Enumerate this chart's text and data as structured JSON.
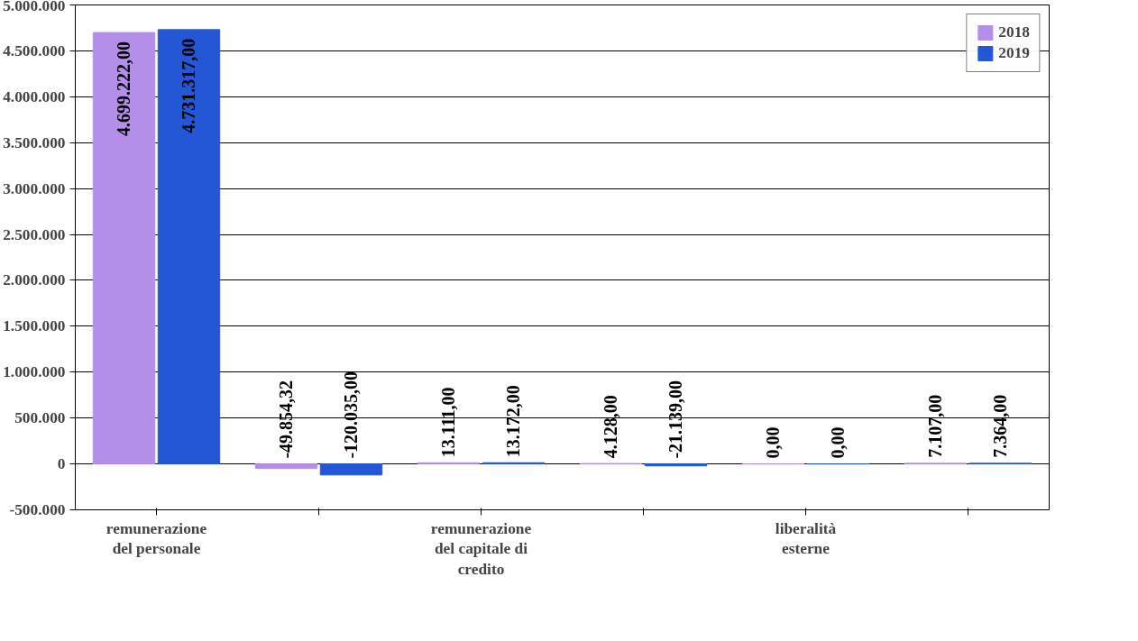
{
  "chart_data": {
    "type": "bar",
    "categories": [
      "remunerazione del personale",
      null,
      "remunerazione del capitale di credito",
      null,
      "liberalità esterne",
      null
    ],
    "series": [
      {
        "name": "2018",
        "color": "#b48ee8",
        "values": [
          4699222,
          -49854.32,
          13111,
          4128,
          0,
          7107
        ],
        "value_labels": [
          "4.699.222,00",
          "-49.854,32",
          "13.111,00",
          "4.128,00",
          "0,00",
          "7.107,00"
        ]
      },
      {
        "name": "2019",
        "color": "#2457d6",
        "values": [
          4731317,
          -120035,
          13172,
          -21139,
          0,
          7364
        ],
        "value_labels": [
          "4.731.317,00",
          "-120.035,00",
          "13.172,00",
          "-21.139,00",
          "0,00",
          "7.364,00"
        ]
      }
    ],
    "ylim": [
      -500000,
      5000000
    ],
    "yticks": [
      {
        "value": -500000,
        "label": "-500.000"
      },
      {
        "value": 0,
        "label": "0"
      },
      {
        "value": 500000,
        "label": "500.000"
      },
      {
        "value": 1000000,
        "label": "1.000.000"
      },
      {
        "value": 1500000,
        "label": "1.500.000"
      },
      {
        "value": 2000000,
        "label": "2.000.000"
      },
      {
        "value": 2500000,
        "label": "2.500.000"
      },
      {
        "value": 3000000,
        "label": "3.000.000"
      },
      {
        "value": 3500000,
        "label": "3.500.000"
      },
      {
        "value": 4000000,
        "label": "4.000.000"
      },
      {
        "value": 4500000,
        "label": "4.500.000"
      },
      {
        "value": 5000000,
        "label": "5.000.000"
      }
    ],
    "grid": "y",
    "legend": "top right"
  }
}
